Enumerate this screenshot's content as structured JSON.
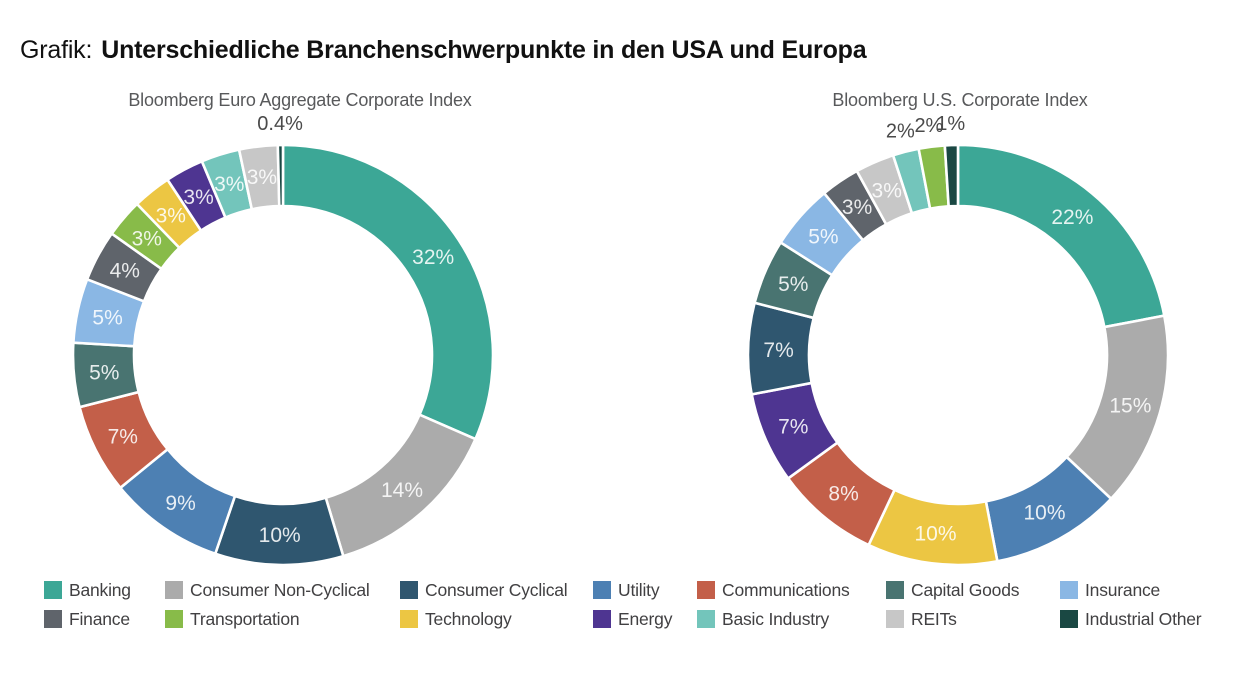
{
  "page_title": {
    "prefix": "Grafik:",
    "main": "Unterschiedliche Branchenschwerpunkte in den USA und Europa"
  },
  "sectors": {
    "banking": {
      "label": "Banking",
      "color": "#3CA796"
    },
    "consumer_non_cyclical": {
      "label": "Consumer Non-Cyclical",
      "color": "#ABABAB"
    },
    "consumer_cyclical": {
      "label": "Consumer Cyclical",
      "color": "#2F566F"
    },
    "utility": {
      "label": "Utility",
      "color": "#4D80B3"
    },
    "communications": {
      "label": "Communications",
      "color": "#C35F49"
    },
    "capital_goods": {
      "label": "Capital Goods",
      "color": "#497471"
    },
    "insurance": {
      "label": "Insurance",
      "color": "#8AB7E4"
    },
    "finance": {
      "label": "Finance",
      "color": "#5F646B"
    },
    "transportation": {
      "label": "Transportation",
      "color": "#88BB49"
    },
    "technology": {
      "label": "Technology",
      "color": "#ECC643"
    },
    "energy": {
      "label": "Energy",
      "color": "#4E3591"
    },
    "basic_industry": {
      "label": "Basic Industry",
      "color": "#73C5BB"
    },
    "reits": {
      "label": "REITs",
      "color": "#C7C7C7"
    },
    "industrial_other": {
      "label": "Industrial Other",
      "color": "#1A4843"
    }
  },
  "chart_data": [
    {
      "type": "pie",
      "style": "donut",
      "title": "Bloomberg Euro Aggregate Corporate Index",
      "label_format": "percent",
      "start_angle_deg": 0,
      "direction": "clockwise",
      "slices": [
        {
          "sector": "banking",
          "value": 32,
          "label": "32%"
        },
        {
          "sector": "consumer_non_cyclical",
          "value": 14,
          "label": "14%"
        },
        {
          "sector": "consumer_cyclical",
          "value": 10,
          "label": "10%"
        },
        {
          "sector": "utility",
          "value": 9,
          "label": "9%"
        },
        {
          "sector": "communications",
          "value": 7,
          "label": "7%"
        },
        {
          "sector": "capital_goods",
          "value": 5,
          "label": "5%"
        },
        {
          "sector": "insurance",
          "value": 5,
          "label": "5%"
        },
        {
          "sector": "finance",
          "value": 4,
          "label": "4%"
        },
        {
          "sector": "transportation",
          "value": 3,
          "label": "3%"
        },
        {
          "sector": "technology",
          "value": 3,
          "label": "3%"
        },
        {
          "sector": "energy",
          "value": 3,
          "label": "3%"
        },
        {
          "sector": "basic_industry",
          "value": 3,
          "label": "3%"
        },
        {
          "sector": "reits",
          "value": 3,
          "label": "3%"
        },
        {
          "sector": "industrial_other",
          "value": 0.4,
          "label": "0.4%",
          "label_outside": true
        }
      ]
    },
    {
      "type": "pie",
      "style": "donut",
      "title": "Bloomberg U.S. Corporate Index",
      "label_format": "percent",
      "start_angle_deg": 0,
      "direction": "clockwise",
      "slices": [
        {
          "sector": "banking",
          "value": 22,
          "label": "22%"
        },
        {
          "sector": "consumer_non_cyclical",
          "value": 15,
          "label": "15%"
        },
        {
          "sector": "utility",
          "value": 10,
          "label": "10%"
        },
        {
          "sector": "technology",
          "value": 10,
          "label": "10%"
        },
        {
          "sector": "communications",
          "value": 8,
          "label": "8%"
        },
        {
          "sector": "energy",
          "value": 7,
          "label": "7%"
        },
        {
          "sector": "consumer_cyclical",
          "value": 7,
          "label": "7%"
        },
        {
          "sector": "capital_goods",
          "value": 5,
          "label": "5%"
        },
        {
          "sector": "insurance",
          "value": 5,
          "label": "5%"
        },
        {
          "sector": "finance",
          "value": 3,
          "label": "3%"
        },
        {
          "sector": "reits",
          "value": 3,
          "label": "3%"
        },
        {
          "sector": "basic_industry",
          "value": 2,
          "label": "2%",
          "label_outside": true
        },
        {
          "sector": "transportation",
          "value": 2,
          "label": "2%",
          "label_outside": true
        },
        {
          "sector": "industrial_other",
          "value": 1,
          "label": "1%",
          "label_outside": true
        }
      ]
    }
  ],
  "legend": {
    "position": "bottom",
    "rows": [
      [
        "banking",
        "consumer_non_cyclical",
        "consumer_cyclical",
        "utility",
        "communications",
        "capital_goods",
        "insurance"
      ],
      [
        "finance",
        "transportation",
        "technology",
        "energy",
        "basic_industry",
        "reits",
        "industrial_other"
      ]
    ]
  }
}
